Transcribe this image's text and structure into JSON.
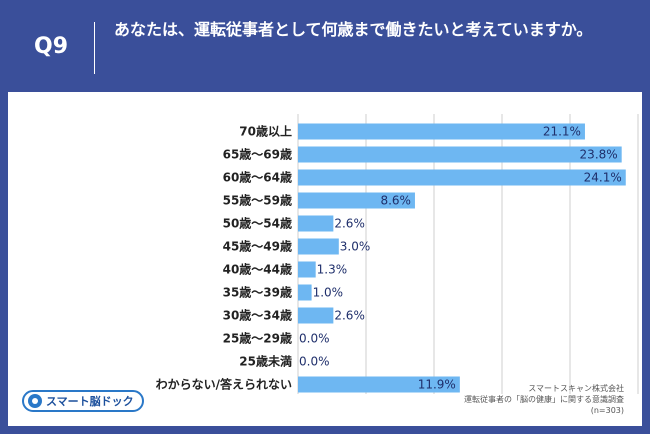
{
  "header": {
    "q_label": "Q9",
    "question": "あなたは、運転従事者として何歳まで働きたいと考えていますか。"
  },
  "logo": {
    "text": "スマート脳ドック"
  },
  "source": {
    "line1": "スマートスキャン株式会社",
    "line2": "運転従事者の「脳の健康」に関する意識調査",
    "line3": "(n=303)"
  },
  "colors": {
    "background": "#3a4f9a",
    "bar": "#6eb7f2",
    "gridline": "#cfcfcf"
  },
  "chart_data": {
    "type": "bar",
    "orientation": "horizontal",
    "categories": [
      "70歳以上",
      "65歳〜69歳",
      "60歳〜64歳",
      "55歳〜59歳",
      "50歳〜54歳",
      "45歳〜49歳",
      "40歳〜44歳",
      "35歳〜39歳",
      "30歳〜34歳",
      "25歳〜29歳",
      "25歳未満",
      "わからない/答えられない"
    ],
    "values": [
      21.1,
      23.8,
      24.1,
      8.6,
      2.6,
      3.0,
      1.3,
      1.0,
      2.6,
      0.0,
      0.0,
      11.9
    ],
    "value_labels": [
      "21.1%",
      "23.8%",
      "24.1%",
      "8.6%",
      "2.6%",
      "3.0%",
      "1.3%",
      "1.0%",
      "2.6%",
      "0.0%",
      "0.0%",
      "11.9%"
    ],
    "xlim": [
      0,
      25
    ],
    "grid": true
  }
}
